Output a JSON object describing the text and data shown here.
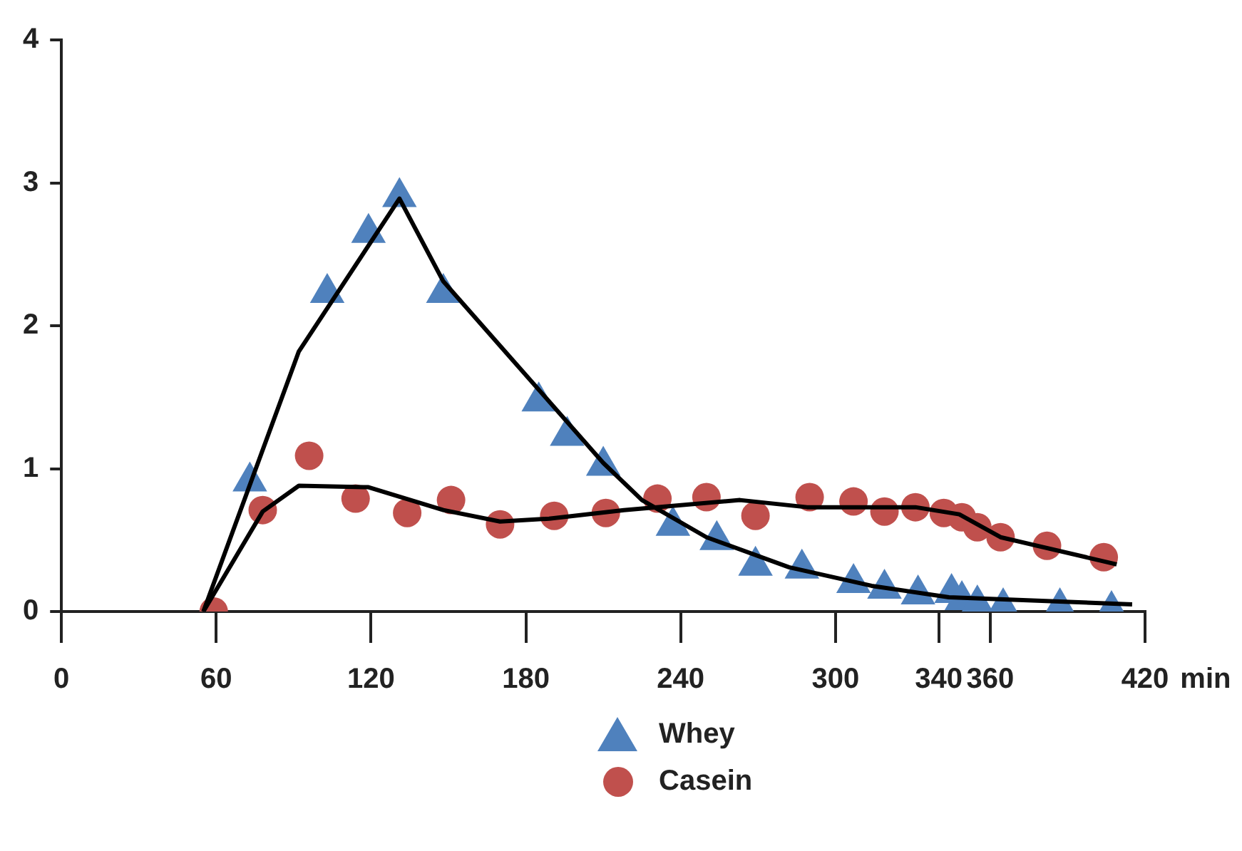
{
  "chart_data": {
    "type": "scatter",
    "xlabel": "min",
    "legend": "bottom",
    "xlim": [
      0,
      420
    ],
    "xticks": [
      0,
      60,
      120,
      180,
      240,
      300,
      340,
      360,
      420
    ],
    "ylim": [
      0,
      4
    ],
    "yticks": [
      0,
      1,
      2,
      3,
      4
    ],
    "series": [
      {
        "name": "Whey",
        "type": "scatter",
        "marker": "triangle",
        "color": "#4f81bd",
        "x": [
          73,
          103,
          119,
          131,
          148,
          185,
          196,
          210,
          237,
          254,
          269,
          287,
          307,
          319,
          332,
          345,
          349,
          355,
          365,
          387,
          407
        ],
        "values": [
          0.91,
          2.23,
          2.65,
          2.9,
          2.23,
          1.47,
          1.23,
          1.02,
          0.6,
          0.5,
          0.32,
          0.3,
          0.2,
          0.16,
          0.12,
          0.13,
          0.08,
          0.05,
          0.03,
          0.03,
          0.01
        ]
      },
      {
        "name": "Casein",
        "type": "scatter",
        "marker": "circle",
        "color": "#c0504d",
        "x": [
          59,
          78,
          96,
          114,
          134,
          151,
          170,
          191,
          211,
          231,
          250,
          269,
          290,
          307,
          319,
          331,
          342,
          349,
          355,
          364,
          382,
          404
        ],
        "values": [
          0,
          0.71,
          1.09,
          0.79,
          0.69,
          0.78,
          0.61,
          0.67,
          0.69,
          0.79,
          0.8,
          0.67,
          0.8,
          0.77,
          0.7,
          0.73,
          0.69,
          0.66,
          0.59,
          0.52,
          0.46,
          0.38
        ]
      },
      {
        "type": "line",
        "color": "#000000",
        "x": [
          55,
          92,
          131,
          148,
          210,
          225,
          250,
          282,
          314,
          344,
          415
        ],
        "values": [
          0,
          1.82,
          2.89,
          2.31,
          1.04,
          0.78,
          0.52,
          0.31,
          0.18,
          0.1,
          0.05
        ]
      },
      {
        "type": "line",
        "color": "#000000",
        "x": [
          55,
          78,
          92,
          119,
          148,
          170,
          189,
          218,
          263,
          289,
          331,
          348,
          364,
          409
        ],
        "values": [
          0,
          0.7,
          0.88,
          0.87,
          0.71,
          0.63,
          0.65,
          0.71,
          0.78,
          0.73,
          0.73,
          0.68,
          0.52,
          0.33
        ]
      }
    ]
  }
}
